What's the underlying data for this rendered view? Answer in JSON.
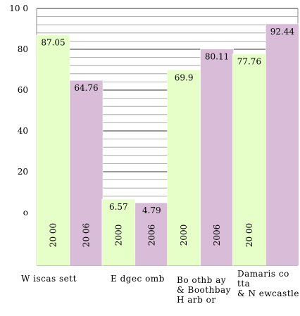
{
  "chart_data": {
    "type": "bar",
    "title": "",
    "xlabel": "",
    "ylabel": "",
    "ylim": [
      -26,
      100
    ],
    "yticks": [
      {
        "value": 100,
        "label": "10 0"
      },
      {
        "value": 80,
        "label": "80"
      },
      {
        "value": 60,
        "label": "60"
      },
      {
        "value": 40,
        "label": "40"
      },
      {
        "value": 20,
        "label": "20"
      },
      {
        "value": 0,
        "label": "o"
      }
    ],
    "grid": true,
    "legend": "none",
    "categories": [
      "W iscas sett",
      "E dgec omb",
      "Bo othb ay\n& Boothbay\nH arb or",
      "Damaris co tta\n& N ewcastle"
    ],
    "series": [
      {
        "year_label": "20 00",
        "color": "#e6ffc8",
        "values": [
          87.05,
          6.57,
          69.9,
          77.76
        ],
        "value_labels": [
          "87.05",
          "6.57",
          "69.9",
          "77.76"
        ],
        "year_labels": [
          "20 00",
          "2000",
          "2000",
          "20 00"
        ]
      },
      {
        "year_label": "20 06",
        "color": "#d8bcd8",
        "values": [
          64.76,
          4.79,
          80.11,
          92.44
        ],
        "value_labels": [
          "64.76",
          "4.79",
          "80.11",
          "92.44"
        ],
        "year_labels": [
          "20 06",
          "2006",
          "2006",
          ""
        ]
      }
    ]
  }
}
